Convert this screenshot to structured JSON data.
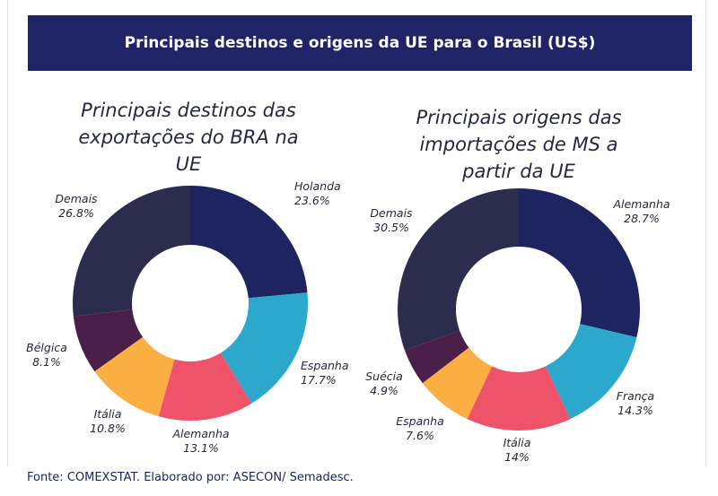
{
  "header": {
    "title": "Principais destinos e origens da UE para o Brasil (US$)"
  },
  "footer": {
    "source": "Fonte: COMEXSTAT. Elaborado por: ASECON/ Semadesc."
  },
  "chart_data": [
    {
      "type": "pie",
      "variant": "donut",
      "title": "Principais destinos das exportações do BRA na UE",
      "categories": [
        "Holanda",
        "Espanha",
        "Alemanha",
        "Itália",
        "Bélgica",
        "Demais"
      ],
      "values": [
        23.6,
        17.7,
        13.1,
        10.8,
        8.1,
        26.8
      ],
      "value_labels": [
        "23.6%",
        "17.7%",
        "13.1%",
        "10.8%",
        "8.1%",
        "26.8%"
      ],
      "colors": [
        "#1e2460",
        "#2ca8cd",
        "#ef5369",
        "#fbae42",
        "#4a1f49",
        "#2c2c4e"
      ]
    },
    {
      "type": "pie",
      "variant": "donut",
      "title": "Principais origens das importações de MS a partir da UE",
      "categories": [
        "Alemanha",
        "França",
        "Itália",
        "Espanha",
        "Suécia",
        "Demais"
      ],
      "values": [
        28.7,
        14.3,
        14,
        7.6,
        4.9,
        30.5
      ],
      "value_labels": [
        "28.7%",
        "14.3%",
        "14%",
        "7.6%",
        "4.9%",
        "30.5%"
      ],
      "colors": [
        "#1e2460",
        "#2ca8cd",
        "#ef5369",
        "#fbae42",
        "#4a1f49",
        "#2c2c4e"
      ]
    }
  ]
}
